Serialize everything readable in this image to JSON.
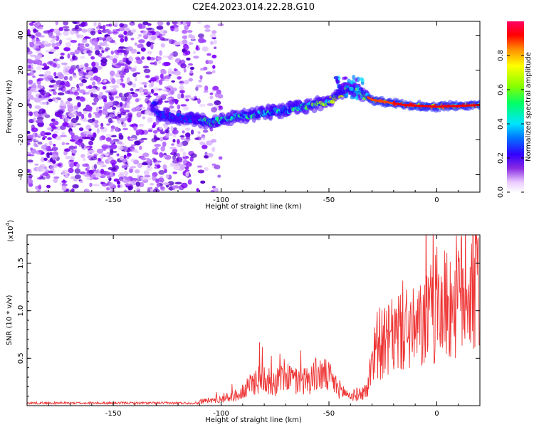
{
  "chart_data": [
    {
      "type": "heatmap",
      "title": "C2E4.2023.014.22.28.G10",
      "xlabel": "Height of straight line (km)",
      "ylabel": "Frequency (Hz)",
      "xlim": [
        -190,
        20
      ],
      "ylim": [
        -50,
        48
      ],
      "x_ticks": [
        -150,
        -100,
        -50,
        0
      ],
      "y_ticks": [
        40,
        20,
        0,
        -20,
        -40
      ],
      "colorbar": {
        "label": "Normalized spectral amplitude",
        "range": [
          0.0,
          1.0
        ],
        "ticks": [
          "0.0",
          "0.2",
          "0.4",
          "0.6",
          "0.8"
        ]
      },
      "features": {
        "noise_region_x": [
          -190,
          -105
        ],
        "signal_track": [
          {
            "x": -130,
            "y": -5
          },
          {
            "x": -105,
            "y": -10
          },
          {
            "x": -90,
            "y": -6
          },
          {
            "x": -70,
            "y": -3
          },
          {
            "x": -50,
            "y": 2
          },
          {
            "x": -40,
            "y": 10
          },
          {
            "x": -30,
            "y": 3
          },
          {
            "x": -15,
            "y": 0
          },
          {
            "x": 0,
            "y": -1
          },
          {
            "x": 20,
            "y": 0
          }
        ]
      }
    },
    {
      "type": "line",
      "xlabel": "Height of straight line (km)",
      "ylabel": "SNR (10 * v/v)",
      "scale_note": "(x10",
      "scale_exp": "4",
      "scale_close": ")",
      "xlim": [
        -190,
        20
      ],
      "ylim": [
        0,
        1.8
      ],
      "x_ticks": [
        -150,
        -100,
        -50,
        0
      ],
      "y_ticks": [
        0.5,
        1.0,
        1.5
      ],
      "y_tick_labels": [
        "0.5",
        "1.0",
        "1.5"
      ],
      "grid": false,
      "series": [
        {
          "color": "#ee3333",
          "x": [
            -190,
            -150,
            -120,
            -110,
            -100,
            -90,
            -85,
            -80,
            -75,
            -70,
            -65,
            -60,
            -55,
            -50,
            -45,
            -40,
            -35,
            -32,
            -30,
            -28,
            -25,
            -20,
            -15,
            -10,
            -5,
            0,
            5,
            10,
            15,
            20
          ],
          "y": [
            0.02,
            0.02,
            0.03,
            0.05,
            0.08,
            0.15,
            0.3,
            0.35,
            0.28,
            0.38,
            0.3,
            0.32,
            0.4,
            0.35,
            0.2,
            0.12,
            0.15,
            0.2,
            0.6,
            0.8,
            0.75,
            0.85,
            1.0,
            0.9,
            1.05,
            1.2,
            1.25,
            1.35,
            1.45,
            1.5
          ]
        }
      ]
    }
  ]
}
